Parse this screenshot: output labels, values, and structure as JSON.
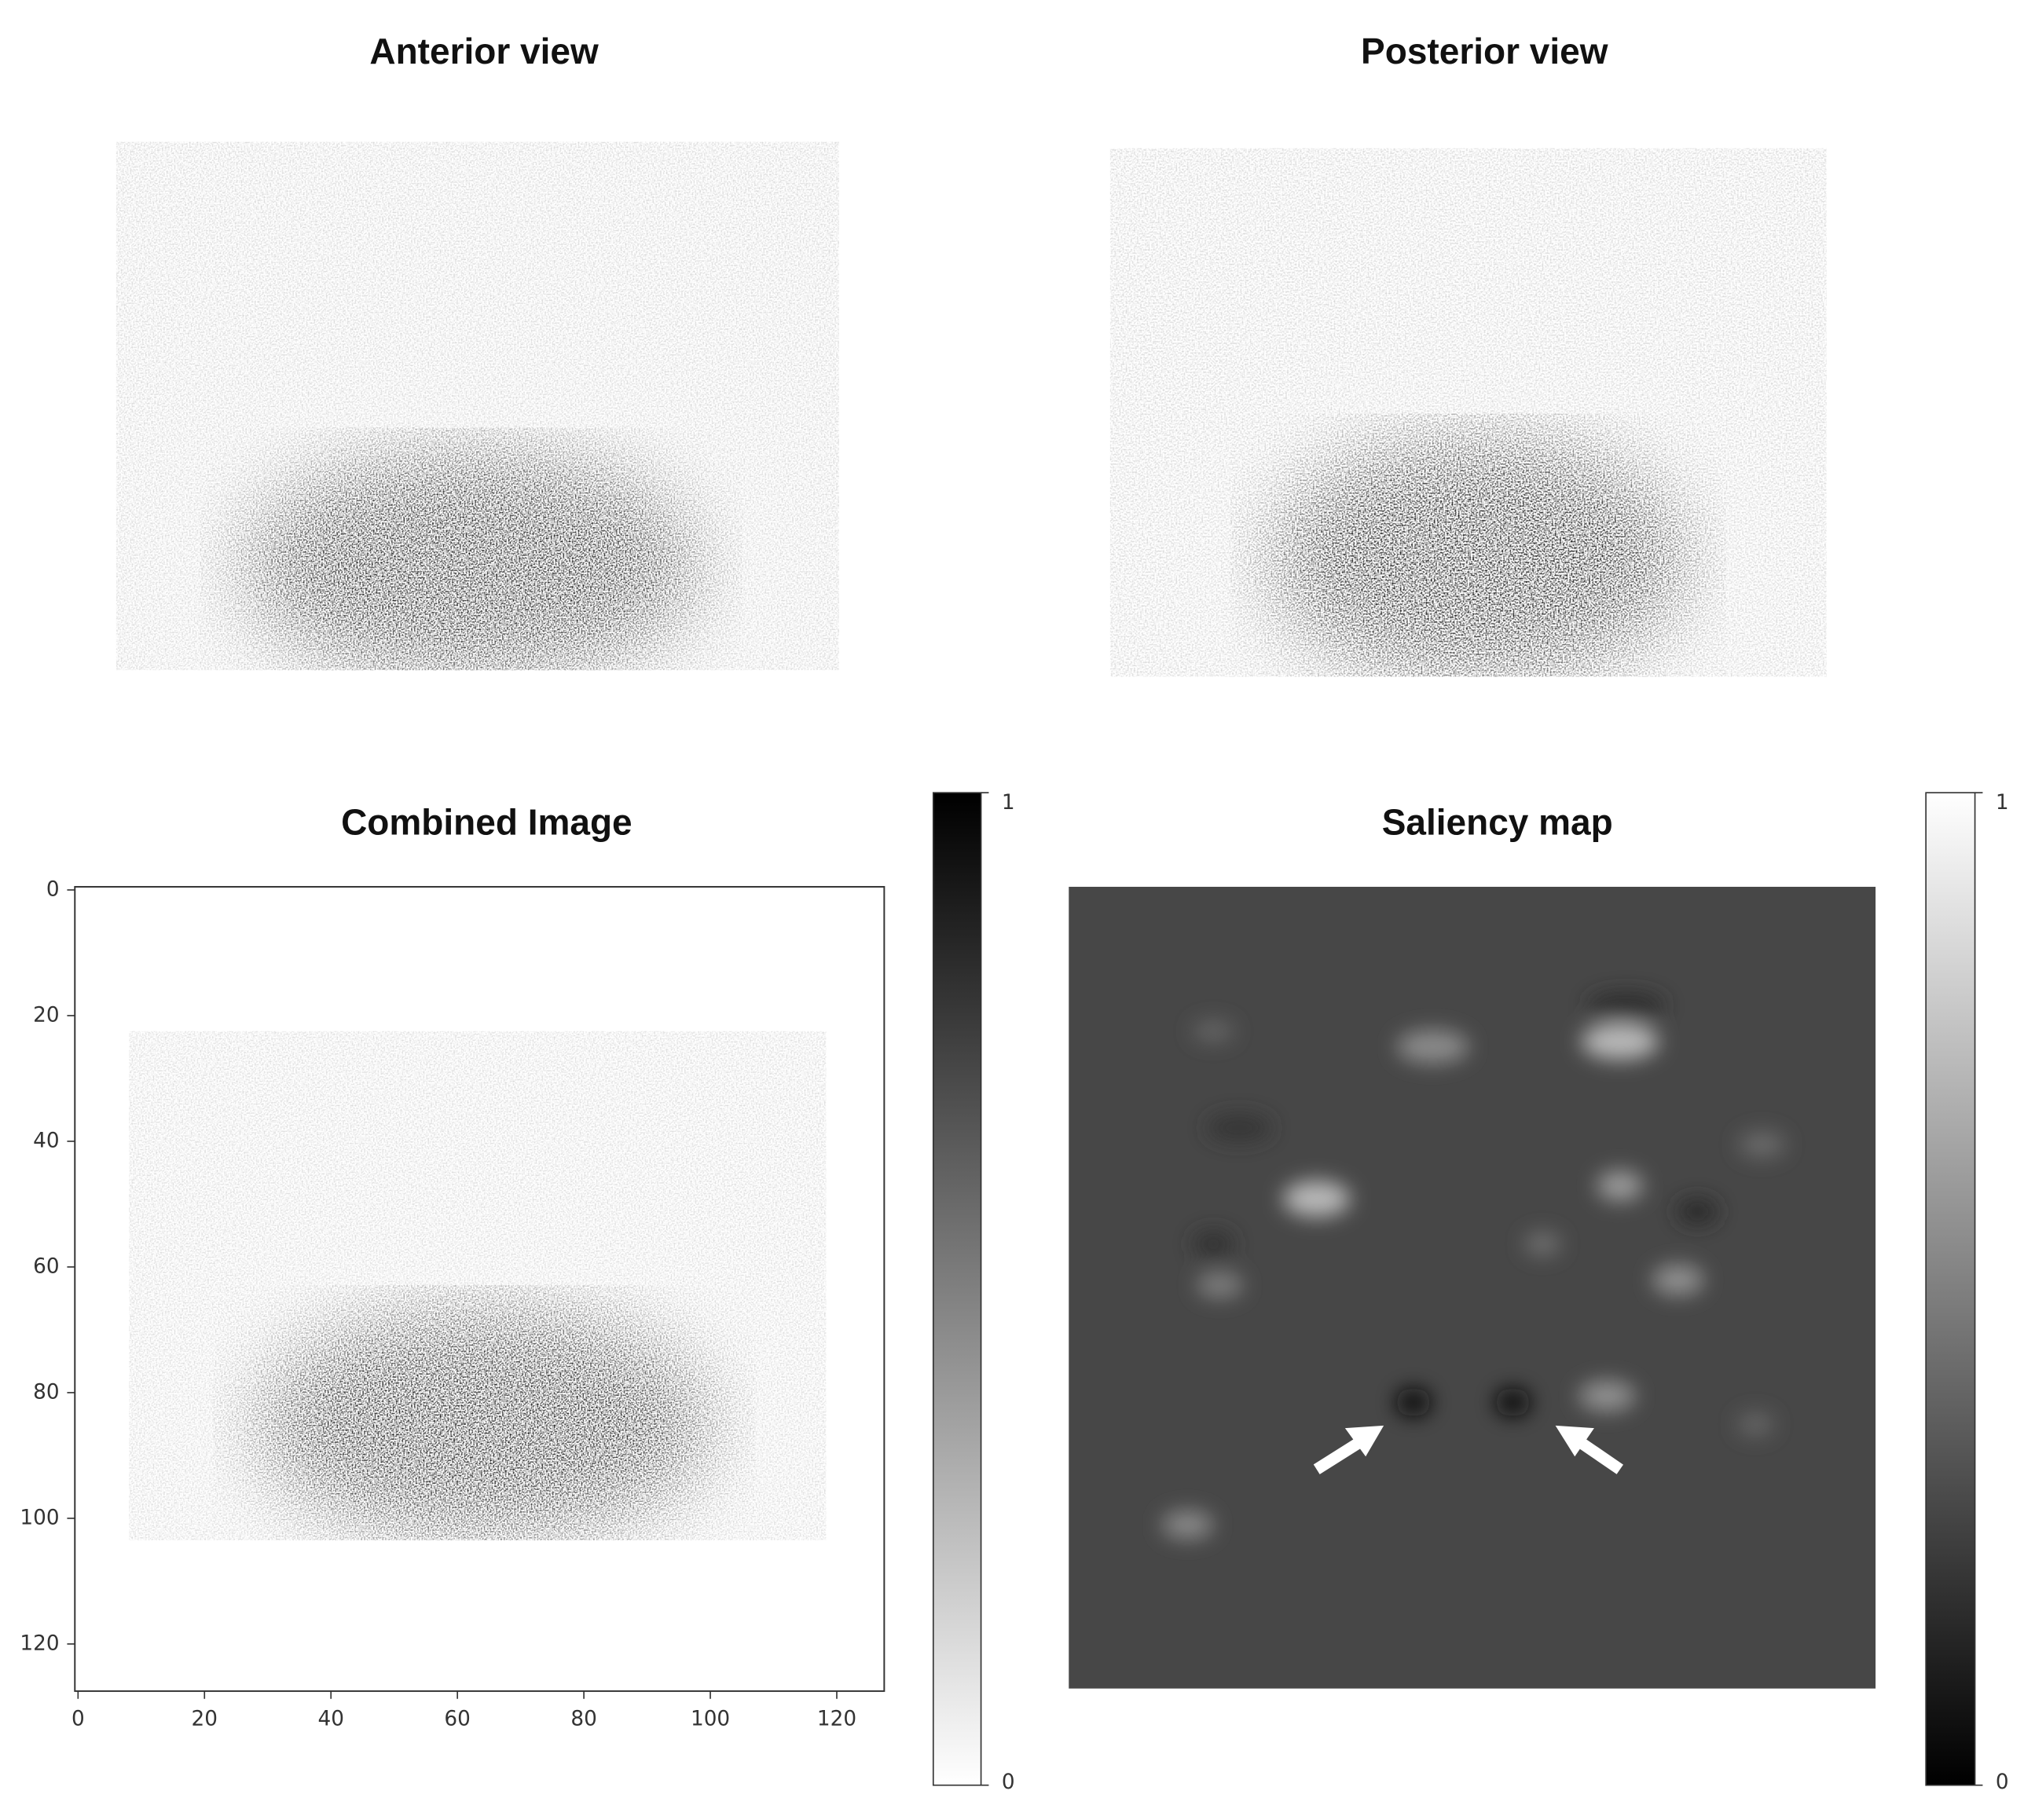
{
  "panels": [
    {
      "title": "Anterior view"
    },
    {
      "title": "Posterior view"
    },
    {
      "title": "Combined Image",
      "xlim": [
        -0.5,
        127.5
      ],
      "ylim": [
        -0.5,
        127.5
      ],
      "xticks": [
        0,
        20,
        40,
        60,
        80,
        100,
        120
      ],
      "yticks": [
        0,
        20,
        40,
        60,
        80,
        100,
        120
      ],
      "colorbar": {
        "ticks": [
          0,
          1
        ]
      }
    },
    {
      "title": "Saliency map",
      "colorbar": {
        "ticks": [
          0,
          1
        ]
      }
    }
  ]
}
